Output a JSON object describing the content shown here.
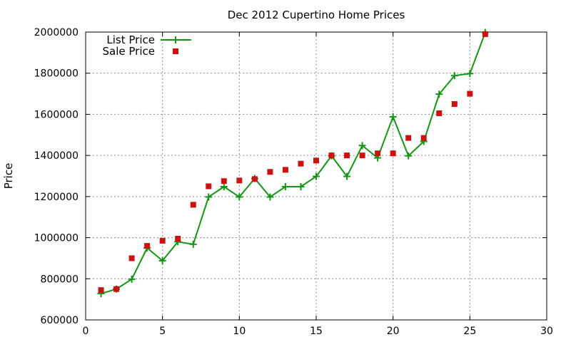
{
  "chart_data": {
    "type": "line",
    "title": "Dec 2012 Cupertino Home Prices",
    "xlabel": "",
    "ylabel": "Price",
    "xlim": [
      0,
      30
    ],
    "ylim": [
      600000,
      2000000
    ],
    "xticks": [
      0,
      5,
      10,
      15,
      20,
      25,
      30
    ],
    "yticks": [
      600000,
      800000,
      1000000,
      1200000,
      1400000,
      1600000,
      1800000,
      2000000
    ],
    "grid": true,
    "legend_position": "top-left",
    "series": [
      {
        "name": "List Price",
        "style": "line+cross",
        "color": "#159515",
        "x": [
          1,
          2,
          3,
          4,
          5,
          6,
          7,
          8,
          9,
          10,
          11,
          12,
          13,
          14,
          15,
          16,
          17,
          18,
          19,
          20,
          21,
          22,
          23,
          24,
          25,
          26
        ],
        "values": [
          728000,
          750000,
          798000,
          950000,
          888000,
          980000,
          968000,
          1198000,
          1248000,
          1198000,
          1288000,
          1198000,
          1248000,
          1248000,
          1298000,
          1398000,
          1298000,
          1448000,
          1388000,
          1588000,
          1398000,
          1468000,
          1698000,
          1788000,
          1798000,
          1998000
        ]
      },
      {
        "name": "Sale Price",
        "style": "square",
        "color": "#cc1111",
        "x": [
          1,
          2,
          3,
          4,
          5,
          6,
          7,
          8,
          9,
          10,
          11,
          12,
          13,
          14,
          15,
          16,
          17,
          18,
          19,
          20,
          21,
          22,
          23,
          24,
          25,
          26
        ],
        "values": [
          745000,
          750000,
          900000,
          960000,
          985000,
          995000,
          1160000,
          1250000,
          1275000,
          1278000,
          1285000,
          1320000,
          1330000,
          1360000,
          1375000,
          1400000,
          1400000,
          1400000,
          1410000,
          1410000,
          1485000,
          1485000,
          1605000,
          1650000,
          1700000,
          1990000
        ]
      }
    ]
  }
}
